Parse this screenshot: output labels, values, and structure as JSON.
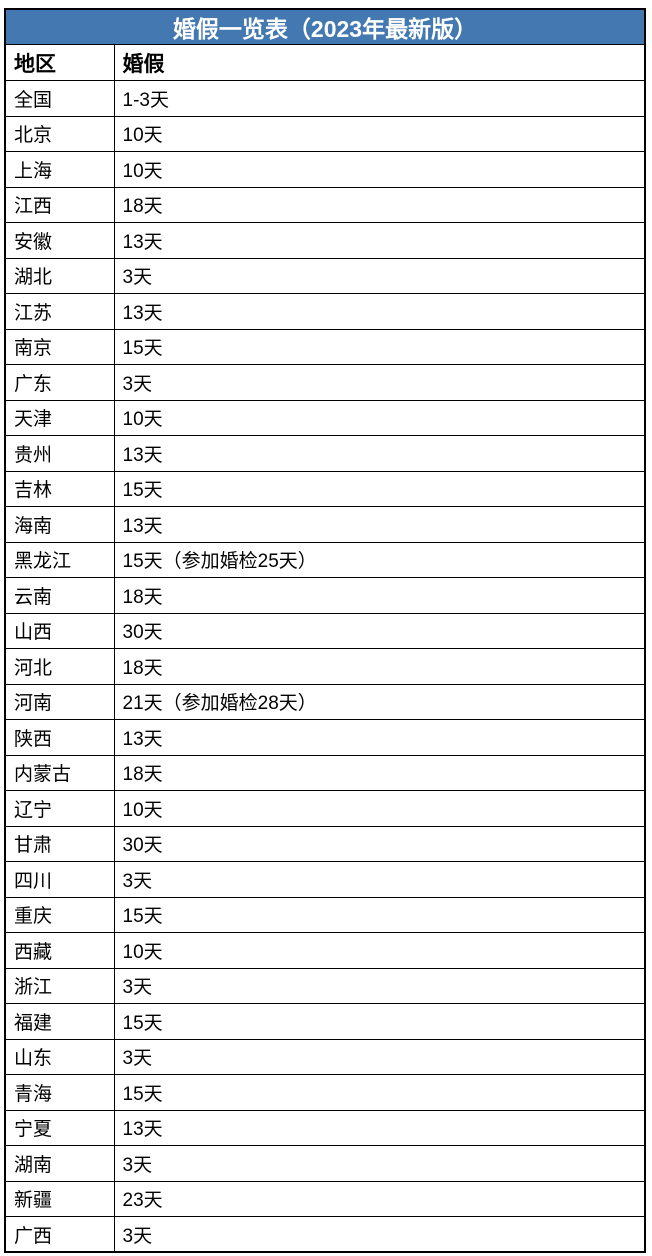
{
  "title": "婚假一览表（2023年最新版）",
  "columns": [
    "地区",
    "婚假"
  ],
  "rows": [
    [
      "全国",
      "1-3天"
    ],
    [
      "北京",
      "10天"
    ],
    [
      "上海",
      "10天"
    ],
    [
      "江西",
      "18天"
    ],
    [
      "安徽",
      "13天"
    ],
    [
      "湖北",
      "3天"
    ],
    [
      "江苏",
      "13天"
    ],
    [
      "南京",
      "15天"
    ],
    [
      "广东",
      "3天"
    ],
    [
      "天津",
      "10天"
    ],
    [
      "贵州",
      "13天"
    ],
    [
      "吉林",
      "15天"
    ],
    [
      "海南",
      "13天"
    ],
    [
      "黑龙江",
      "15天（参加婚检25天）"
    ],
    [
      "云南",
      "18天"
    ],
    [
      "山西",
      "30天"
    ],
    [
      "河北",
      "18天"
    ],
    [
      "河南",
      "21天（参加婚检28天）"
    ],
    [
      "陕西",
      "13天"
    ],
    [
      "内蒙古",
      "18天"
    ],
    [
      "辽宁",
      "10天"
    ],
    [
      "甘肃",
      "30天"
    ],
    [
      "四川",
      "3天"
    ],
    [
      "重庆",
      "15天"
    ],
    [
      "西藏",
      "10天"
    ],
    [
      "浙江",
      "3天"
    ],
    [
      "福建",
      "15天"
    ],
    [
      "山东",
      "3天"
    ],
    [
      "青海",
      "15天"
    ],
    [
      "宁夏",
      "13天"
    ],
    [
      "湖南",
      "3天"
    ],
    [
      "新疆",
      "23天"
    ],
    [
      "广西",
      "3天"
    ]
  ],
  "colors": {
    "title_background": "#4478B1",
    "title_text": "#FFFFFF",
    "border": "#000000"
  }
}
